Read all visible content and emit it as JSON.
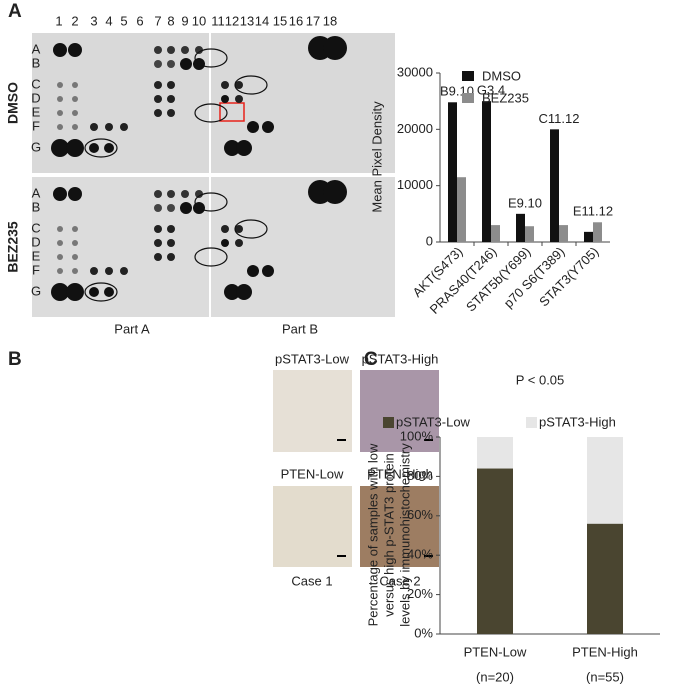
{
  "panels": [
    "A",
    "B",
    "C"
  ],
  "blot": {
    "columns": [
      "1",
      "2",
      "3",
      "4",
      "5",
      "6",
      "7",
      "8",
      "9",
      "10",
      "11",
      "12",
      "13",
      "14",
      "15",
      "16",
      "17",
      "18"
    ],
    "rows": [
      "A",
      "B",
      "C",
      "D",
      "E",
      "F",
      "G"
    ],
    "conditions": [
      "DMSO",
      "BEZ235"
    ],
    "parts": [
      "Part A",
      "Part B"
    ]
  },
  "histology": {
    "labels": [
      "pSTAT3-Low",
      "pSTAT3-High",
      "PTEN-Low",
      "PTEN-High"
    ],
    "cases": [
      "Case 1",
      "Case 2"
    ]
  },
  "chart_data": [
    {
      "type": "bar",
      "ylabel": "Mean Pixel Density",
      "categories": [
        "AKT(S473)",
        "PRAS40(T246)",
        "STAT5b(Y699)",
        "p70 S6(T389)",
        "STAT3(Y705)"
      ],
      "category_label_colors": [
        "#222222",
        "#222222",
        "#222222",
        "#222222",
        "#e8231b"
      ],
      "annotations": [
        "B9.10",
        "G3.4",
        "E9.10",
        "C11.12",
        "E11.12"
      ],
      "series": [
        {
          "name": "DMSO",
          "color": "#111111",
          "values": [
            24800,
            25000,
            5000,
            20000,
            1800
          ]
        },
        {
          "name": "BEZ235",
          "color": "#8c8c8c",
          "values": [
            11500,
            3000,
            2800,
            3000,
            3500
          ]
        }
      ],
      "ylim": [
        0,
        30000
      ],
      "yticks": [
        0,
        10000,
        20000,
        30000
      ]
    },
    {
      "type": "stacked_bar",
      "title": "P < 0.05",
      "ylabel": [
        "Percentage of samples with low",
        "versus high p-STAT3 protein",
        "levels by immunohistochemistry"
      ],
      "categories": [
        "PTEN-Low",
        "PTEN-High"
      ],
      "category_notes": [
        "(n=20)",
        "(n=55)"
      ],
      "series": [
        {
          "name": "pSTAT3-Low",
          "color": "#4a4530",
          "values": [
            84,
            56
          ]
        },
        {
          "name": "pSTAT3-High",
          "color": "#e6e6e6",
          "values": [
            16,
            44
          ]
        }
      ],
      "ylim": [
        0,
        100
      ],
      "yticks": [
        {
          "value": 0,
          "label": "0%"
        },
        {
          "value": 20,
          "label": "20%"
        },
        {
          "value": 40,
          "label": "40%"
        },
        {
          "value": 60,
          "label": "60%"
        },
        {
          "value": 80,
          "label": "80%"
        },
        {
          "value": 100,
          "label": "100%"
        }
      ]
    }
  ]
}
